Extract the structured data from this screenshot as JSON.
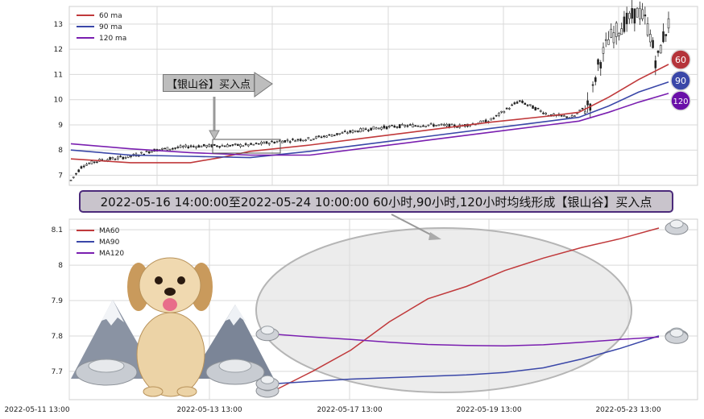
{
  "annotation": {
    "callout_label": "【银山谷】买入点",
    "banner_text": "2022-05-16 14:00:00至2022-05-24 10:00:00 60小时,90小时,120小时均线形成【银山谷】买入点"
  },
  "badges": [
    {
      "label": "60",
      "color": "#b5343a"
    },
    {
      "label": "90",
      "color": "#3a47a8"
    },
    {
      "label": "120",
      "color": "#6a0fa8"
    }
  ],
  "colors": {
    "ma60": "#c0393b",
    "ma90": "#3a47a8",
    "ma120": "#7a1fb0",
    "candle": "#222222",
    "grid": "#d9d9d9"
  },
  "chart_data": [
    {
      "type": "line",
      "panel": "top",
      "yticks": [
        7,
        8,
        9,
        10,
        11,
        12,
        13
      ],
      "ylim": [
        6.6,
        13.7
      ],
      "xlim": [
        0,
        100
      ],
      "legend": [
        "60 ma",
        "90 ma",
        "120 ma"
      ],
      "legend_position": "top-left",
      "grid": true,
      "candles": {
        "anchors": [
          [
            0,
            6.8
          ],
          [
            2,
            7.4
          ],
          [
            5,
            7.6
          ],
          [
            10,
            7.75
          ],
          [
            14,
            8.0
          ],
          [
            20,
            8.15
          ],
          [
            30,
            8.2
          ],
          [
            35,
            8.35
          ],
          [
            40,
            8.45
          ],
          [
            45,
            8.65
          ],
          [
            50,
            8.85
          ],
          [
            55,
            8.95
          ],
          [
            60,
            9.0
          ],
          [
            65,
            8.95
          ],
          [
            70,
            9.15
          ],
          [
            75,
            9.95
          ],
          [
            80,
            9.4
          ],
          [
            84,
            9.3
          ],
          [
            87,
            9.9
          ],
          [
            88,
            11.2
          ],
          [
            90,
            12.4
          ],
          [
            92,
            12.9
          ],
          [
            94,
            13.3
          ],
          [
            95,
            13.5
          ],
          [
            96,
            13.2
          ],
          [
            97,
            12.5
          ],
          [
            98,
            11.4
          ],
          [
            99,
            12.4
          ],
          [
            100,
            13.0
          ]
        ]
      },
      "series": [
        {
          "name": "60 ma",
          "color": "#c0393b",
          "points": [
            [
              0,
              7.65
            ],
            [
              10,
              7.5
            ],
            [
              20,
              7.5
            ],
            [
              25,
              7.7
            ],
            [
              30,
              7.95
            ],
            [
              40,
              8.2
            ],
            [
              50,
              8.5
            ],
            [
              60,
              8.8
            ],
            [
              70,
              9.1
            ],
            [
              80,
              9.35
            ],
            [
              85,
              9.5
            ],
            [
              90,
              10.1
            ],
            [
              95,
              10.8
            ],
            [
              100,
              11.4
            ]
          ]
        },
        {
          "name": "90 ma",
          "color": "#3a47a8",
          "points": [
            [
              0,
              8.0
            ],
            [
              10,
              7.8
            ],
            [
              20,
              7.75
            ],
            [
              30,
              7.7
            ],
            [
              40,
              7.95
            ],
            [
              50,
              8.25
            ],
            [
              60,
              8.55
            ],
            [
              70,
              8.85
            ],
            [
              80,
              9.15
            ],
            [
              85,
              9.3
            ],
            [
              90,
              9.75
            ],
            [
              95,
              10.3
            ],
            [
              100,
              10.7
            ]
          ]
        },
        {
          "name": "120 ma",
          "color": "#7a1fb0",
          "points": [
            [
              0,
              8.25
            ],
            [
              10,
              8.05
            ],
            [
              20,
              7.9
            ],
            [
              30,
              7.8
            ],
            [
              40,
              7.8
            ],
            [
              50,
              8.1
            ],
            [
              60,
              8.4
            ],
            [
              70,
              8.7
            ],
            [
              80,
              9.0
            ],
            [
              85,
              9.15
            ],
            [
              90,
              9.5
            ],
            [
              95,
              9.9
            ],
            [
              100,
              10.25
            ]
          ]
        }
      ]
    },
    {
      "type": "line",
      "panel": "bottom",
      "yticks": [
        7.7,
        7.8,
        7.9,
        8.0,
        8.1
      ],
      "ylim": [
        7.62,
        8.13
      ],
      "xticks": [
        "2022-05-11 13:00",
        "2022-05-13 13:00",
        "2022-05-17 13:00",
        "2022-05-19 13:00",
        "2022-05-23 13:00"
      ],
      "legend": [
        "MA60",
        "MA90",
        "MA120"
      ],
      "legend_position": "top-left",
      "grid": true,
      "series": [
        {
          "name": "MA60",
          "color": "#c0393b",
          "points": [
            [
              0,
              7.645
            ],
            [
              10,
              7.7
            ],
            [
              20,
              7.76
            ],
            [
              30,
              7.84
            ],
            [
              40,
              7.905
            ],
            [
              50,
              7.94
            ],
            [
              60,
              7.985
            ],
            [
              70,
              8.02
            ],
            [
              80,
              8.05
            ],
            [
              90,
              8.075
            ],
            [
              100,
              8.105
            ]
          ]
        },
        {
          "name": "MA90",
          "color": "#3a47a8",
          "points": [
            [
              0,
              7.665
            ],
            [
              10,
              7.672
            ],
            [
              20,
              7.678
            ],
            [
              30,
              7.682
            ],
            [
              40,
              7.686
            ],
            [
              50,
              7.69
            ],
            [
              60,
              7.697
            ],
            [
              70,
              7.71
            ],
            [
              80,
              7.735
            ],
            [
              90,
              7.765
            ],
            [
              100,
              7.8
            ]
          ]
        },
        {
          "name": "MA120",
          "color": "#7a1fb0",
          "points": [
            [
              0,
              7.805
            ],
            [
              10,
              7.797
            ],
            [
              20,
              7.79
            ],
            [
              30,
              7.782
            ],
            [
              40,
              7.776
            ],
            [
              50,
              7.773
            ],
            [
              60,
              7.772
            ],
            [
              70,
              7.775
            ],
            [
              80,
              7.782
            ],
            [
              90,
              7.79
            ],
            [
              100,
              7.797
            ]
          ]
        }
      ]
    }
  ]
}
